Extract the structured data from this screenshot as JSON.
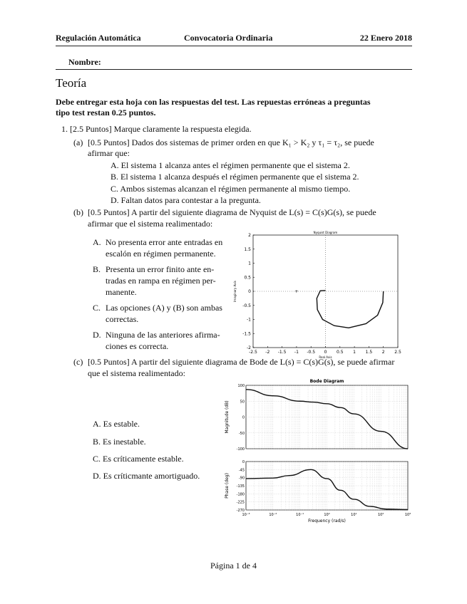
{
  "header": {
    "course": "Regulación Automática",
    "session": "Convocatoria Ordinaria",
    "date": "22 Enero 2018"
  },
  "name_label": "Nombre:",
  "section_title": "Teoría",
  "instructions": [
    "Debe entregar esta hoja con las respuestas del test.  Las repuestas erróneas a preguntas",
    "tipo test restan 0.25 puntos."
  ],
  "q1": {
    "label": "1.",
    "text": "[2.5 Puntos]  Marque claramente la respuesta elegida."
  },
  "qa": {
    "label": "(a)",
    "lines": [
      "[0.5 Puntos]  Dados dos sistemas de primer orden en que K₁ > K₂ y τ₁ = τ₂, se puede",
      "afirmar que:"
    ],
    "options": [
      "A. El sistema 1 alcanza antes el régimen permanente que el sistema 2.",
      "B. El sistema 1 alcanza después el régimen permanente que el sistema 2.",
      "C. Ambos sistemas alcanzan el régimen permanente al mismo tiempo.",
      "D. Faltan datos para contestar a la pregunta."
    ]
  },
  "qb": {
    "label": "(b)",
    "lines": [
      "[0.5 Puntos]  A partir del siguiente diagrama de Nyquist de L(s) = C(s)G(s), se puede",
      "afirmar que el sistema realimentado:"
    ],
    "options": [
      {
        "letter": "A.",
        "lines": [
          "No presenta error ante entradas en",
          "escalón en régimen permanente."
        ]
      },
      {
        "letter": "B.",
        "lines": [
          "Presenta un error finito ante en-",
          "tradas en rampa en régimen per-",
          "manente."
        ]
      },
      {
        "letter": "C.",
        "lines": [
          "Las opciones (A) y (B) son ambas",
          "correctas."
        ]
      },
      {
        "letter": "D.",
        "lines": [
          "Ninguna de las anteriores afirma-",
          "ciones es correcta."
        ]
      }
    ],
    "plot": {
      "title": "Nyquist Diagram",
      "xlabel": "Real Axis",
      "ylabel": "Imaginary Axis",
      "xticks": [
        "-2.5",
        "-2",
        "-1.5",
        "-1",
        "-0.5",
        "0",
        "0.5",
        "1",
        "1.5",
        "2",
        "2.5"
      ],
      "yticks": [
        "2",
        "1.5",
        "1",
        "0.5",
        "0",
        "-0.5",
        "-1",
        "-1.5",
        "-2"
      ]
    }
  },
  "qc": {
    "label": "(c)",
    "lines": [
      "[0.5 Puntos]  A partir del siguiente diagrama de Bode de L(s) = C(s)G(s), se puede afirmar",
      "que el sistema realimentado:"
    ],
    "options": [
      "A.  Es estable.",
      "B.  Es inestable.",
      "C.  Es críticamente estable.",
      "D.  Es críticmante amortiguado."
    ],
    "plot": {
      "title": "Bode Diagram",
      "xlabel": "Frequency  (rad/s)",
      "mag_label": "Magnitude (dB)",
      "phase_label": "Phase (deg)",
      "xticks": [
        "10⁻³",
        "10⁻²",
        "10⁻¹",
        "10⁰",
        "10¹",
        "10²",
        "10³"
      ],
      "mag_ticks": [
        "100",
        "50",
        "0",
        "-50",
        "-100"
      ],
      "phase_ticks": [
        "0",
        "-45",
        "-90",
        "-135",
        "-180",
        "-225",
        "-270"
      ]
    }
  },
  "footer": "Página 1 de 4"
}
